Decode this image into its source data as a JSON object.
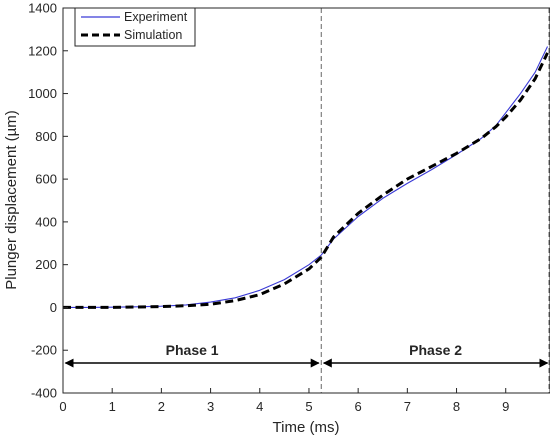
{
  "chart_data": {
    "type": "line",
    "xlabel": "Time (ms)",
    "ylabel": "Plunger displacement (µm)",
    "xlim": [
      0,
      9.9
    ],
    "ylim": [
      -400,
      1400
    ],
    "xticks": [
      0,
      1,
      2,
      3,
      4,
      5,
      6,
      7,
      8,
      9
    ],
    "yticks": [
      -400,
      -200,
      0,
      200,
      400,
      600,
      800,
      1000,
      1200,
      1400
    ],
    "grid": false,
    "legend_position": "top-left",
    "series": [
      {
        "name": "Experiment",
        "style": "solid",
        "color": "#3a3ad6",
        "x": [
          0,
          0.5,
          1,
          1.5,
          2,
          2.5,
          3,
          3.5,
          4,
          4.5,
          5,
          5.25,
          5.5,
          6,
          6.5,
          7,
          7.5,
          8,
          8.5,
          8.8,
          9,
          9.3,
          9.6,
          9.85
        ],
        "y": [
          0,
          0,
          1,
          3,
          6,
          12,
          25,
          45,
          80,
          130,
          200,
          245,
          320,
          425,
          510,
          580,
          645,
          715,
          790,
          850,
          910,
          1000,
          1100,
          1220
        ]
      },
      {
        "name": "Simulation",
        "style": "dashed",
        "color": "#000000",
        "x": [
          0,
          0.5,
          1,
          1.5,
          2,
          2.5,
          3,
          3.5,
          4,
          4.5,
          5,
          5.25,
          5.5,
          6,
          6.5,
          7,
          7.5,
          8,
          8.5,
          8.8,
          9,
          9.3,
          9.6,
          9.85
        ],
        "y": [
          0,
          0,
          0,
          2,
          4,
          8,
          15,
          32,
          60,
          110,
          180,
          235,
          330,
          440,
          525,
          600,
          660,
          720,
          790,
          845,
          890,
          970,
          1070,
          1190
        ]
      }
    ],
    "vlines": [
      5.25,
      9.88
    ],
    "annotations": [
      {
        "label": "Phase 1",
        "x_from": 0.05,
        "x_to": 5.2,
        "y": -260
      },
      {
        "label": "Phase 2",
        "x_from": 5.3,
        "x_to": 9.85,
        "y": -260
      }
    ]
  }
}
